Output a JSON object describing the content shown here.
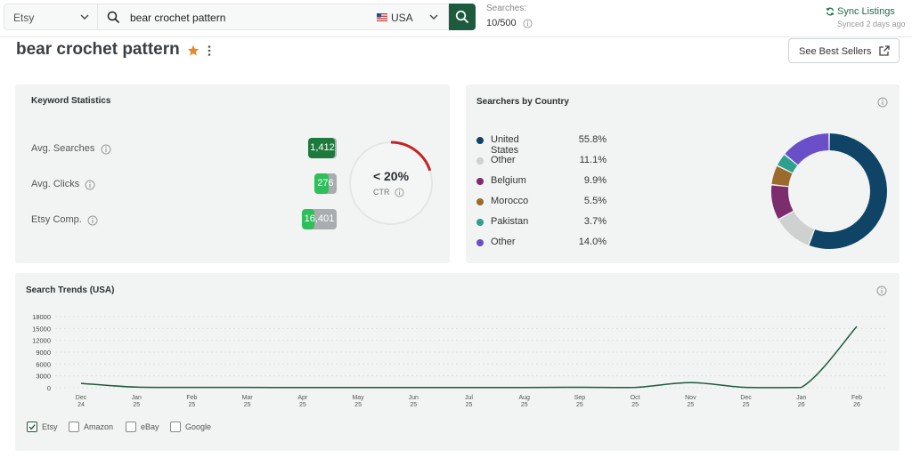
{
  "topbar": {
    "marketplace": "Etsy",
    "search_query": "bear crochet pattern",
    "country": "USA",
    "quota_label": "Searches:",
    "quota_value": "10/500",
    "sync_label": "Sync Listings",
    "sync_status": "Synced 2 days ago"
  },
  "header": {
    "title": "bear crochet pattern",
    "best_sellers_label": "See Best Sellers"
  },
  "keyword_stats": {
    "title": "Keyword Statistics",
    "items": [
      {
        "label": "Avg. Searches",
        "value": "1,412",
        "fill": 0.95,
        "color": "#1e7a3c"
      },
      {
        "label": "Avg. Clicks",
        "value": "276",
        "fill": 0.65,
        "color": "#2fbf5a"
      },
      {
        "label": "Etsy Comp.",
        "value": "16,401",
        "fill": 0.35,
        "color": "#2fbf5a"
      }
    ],
    "ctr_value": "< 20%",
    "ctr_label": "CTR",
    "ctr_fraction": 0.2
  },
  "country_panel": {
    "title": "Searchers by Country",
    "items": [
      {
        "name": "United States",
        "pct": "55.8%",
        "value": 55.8,
        "color": "#0f4466"
      },
      {
        "name": "Other",
        "pct": "11.1%",
        "value": 11.1,
        "color": "#cfd0d0"
      },
      {
        "name": "Belgium",
        "pct": "9.9%",
        "value": 9.9,
        "color": "#7c2d6e"
      },
      {
        "name": "Morocco",
        "pct": "5.5%",
        "value": 5.5,
        "color": "#9b6b2e"
      },
      {
        "name": "Pakistan",
        "pct": "3.7%",
        "value": 3.7,
        "color": "#2f9f8f"
      },
      {
        "name": "Other",
        "pct": "14.0%",
        "value": 14.0,
        "color": "#6a4fc8"
      }
    ]
  },
  "trends": {
    "title": "Search Trends (USA)",
    "sources": [
      {
        "label": "Etsy",
        "checked": true
      },
      {
        "label": "Amazon",
        "checked": false
      },
      {
        "label": "eBay",
        "checked": false
      },
      {
        "label": "Google",
        "checked": false
      }
    ]
  },
  "chart_data": {
    "type": "line",
    "title": "Search Trends (USA)",
    "ylim": [
      0,
      18000
    ],
    "yticks": [
      "18000",
      "15000",
      "12000",
      "9000",
      "6000",
      "3000",
      "0"
    ],
    "x": [
      [
        "Dec",
        "24"
      ],
      [
        "Jan",
        "25"
      ],
      [
        "Feb",
        "25"
      ],
      [
        "Mar",
        "25"
      ],
      [
        "Apr",
        "25"
      ],
      [
        "May",
        "25"
      ],
      [
        "Jun",
        "25"
      ],
      [
        "Jul",
        "25"
      ],
      [
        "Aug",
        "25"
      ],
      [
        "Sep",
        "25"
      ],
      [
        "Oct",
        "25"
      ],
      [
        "Nov",
        "25"
      ],
      [
        "Dec",
        "25"
      ],
      [
        "Jan",
        "26"
      ],
      [
        "Feb",
        "26"
      ]
    ],
    "series": [
      {
        "values": [
          1100,
          150,
          100,
          80,
          60,
          60,
          60,
          50,
          60,
          120,
          100,
          1300,
          80,
          100,
          15500
        ]
      }
    ],
    "line_color": "#1d5a3c"
  }
}
